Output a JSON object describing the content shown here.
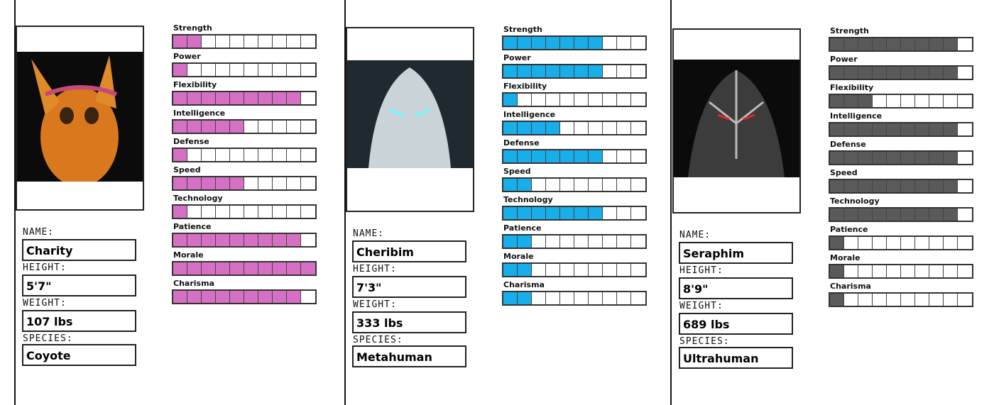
{
  "max": 10,
  "cards": [
    {
      "name_label": "NAME:",
      "name": "Charity",
      "height_label": "HEIGHT:",
      "height": "5'7\"",
      "weight_label": "WEIGHT:",
      "weight": "107 lbs",
      "species_label": "SPECIES:",
      "species": "Coyote",
      "color": "#d670c4",
      "stats": [
        {
          "label": "Strength",
          "value": 2
        },
        {
          "label": "Power",
          "value": 1
        },
        {
          "label": "Flexibility",
          "value": 9
        },
        {
          "label": "Intelligence",
          "value": 5
        },
        {
          "label": "Defense",
          "value": 1
        },
        {
          "label": "Speed",
          "value": 5
        },
        {
          "label": "Technology",
          "value": 1
        },
        {
          "label": "Patience",
          "value": 9
        },
        {
          "label": "Morale",
          "value": 10
        },
        {
          "label": "Charisma",
          "value": 9
        }
      ]
    },
    {
      "name_label": "NAME:",
      "name": "Cheribim",
      "height_label": "HEIGHT:",
      "height": "7'3\"",
      "weight_label": "WEIGHT:",
      "weight": "333 lbs",
      "species_label": "SPECIES:",
      "species": "Metahuman",
      "color": "#18aeea",
      "stats": [
        {
          "label": "Strength",
          "value": 7
        },
        {
          "label": "Power",
          "value": 7
        },
        {
          "label": "Flexibility",
          "value": 1
        },
        {
          "label": "Intelligence",
          "value": 4
        },
        {
          "label": "Defense",
          "value": 7
        },
        {
          "label": "Speed",
          "value": 2
        },
        {
          "label": "Technology",
          "value": 7
        },
        {
          "label": "Patience",
          "value": 2
        },
        {
          "label": "Morale",
          "value": 2
        },
        {
          "label": "Charisma",
          "value": 2
        }
      ]
    },
    {
      "name_label": "NAME:",
      "name": "Seraphim",
      "height_label": "HEIGHT:",
      "height": "8'9\"",
      "weight_label": "WEIGHT:",
      "weight": "689 lbs",
      "species_label": "SPECIES:",
      "species": "Ultrahuman",
      "color": "#5a5a5a",
      "stats": [
        {
          "label": "Strength",
          "value": 9
        },
        {
          "label": "Power",
          "value": 9
        },
        {
          "label": "Flexibility",
          "value": 3
        },
        {
          "label": "Intelligence",
          "value": 9
        },
        {
          "label": "Defense",
          "value": 9
        },
        {
          "label": "Speed",
          "value": 9
        },
        {
          "label": "Technology",
          "value": 9
        },
        {
          "label": "Patience",
          "value": 1
        },
        {
          "label": "Morale",
          "value": 1
        },
        {
          "label": "Charisma",
          "value": 1
        }
      ]
    }
  ]
}
